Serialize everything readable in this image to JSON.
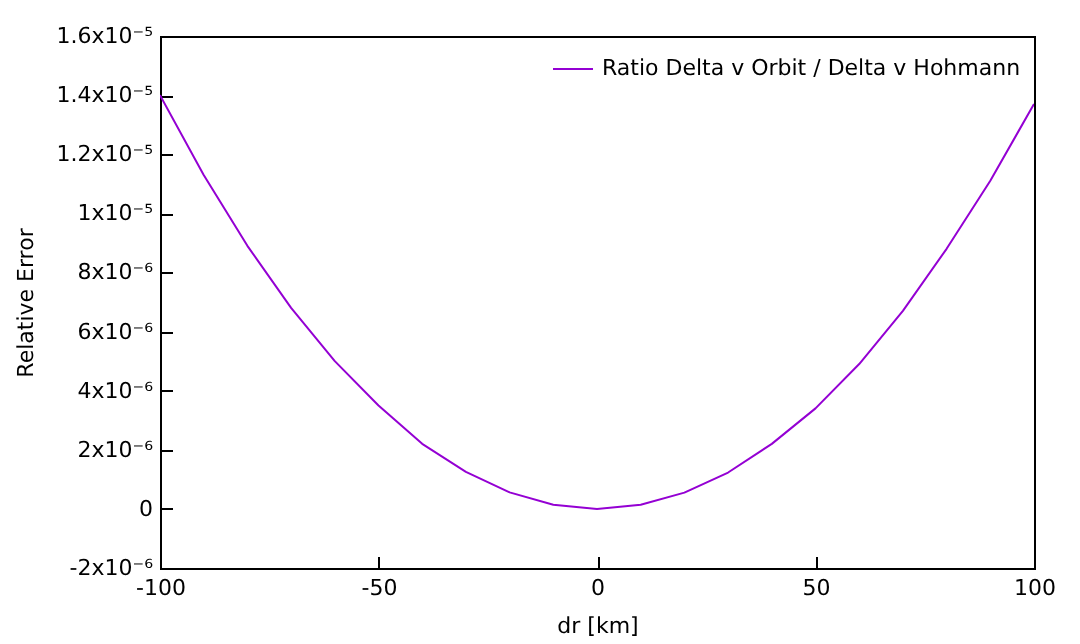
{
  "chart_data": {
    "type": "line",
    "xlabel": "dr [km]",
    "ylabel": "Relative Error",
    "x": [
      -100,
      -90,
      -80,
      -70,
      -60,
      -50,
      -40,
      -30,
      -20,
      -10,
      0,
      10,
      20,
      30,
      40,
      50,
      60,
      70,
      80,
      90,
      100
    ],
    "series": [
      {
        "name": "Ratio Delta v Orbit / Delta v Hohmann",
        "color": "#9400d3",
        "values": [
          1.4e-05,
          1.13e-05,
          8.9e-06,
          6.8e-06,
          5e-06,
          3.5e-06,
          2.2e-06,
          1.25e-06,
          5.6e-07,
          1.4e-07,
          0,
          1.4e-07,
          5.5e-07,
          1.23e-06,
          2.2e-06,
          3.4e-06,
          4.9e-06,
          6.7e-06,
          8.8e-06,
          1.11e-05,
          1.37e-05
        ]
      }
    ],
    "xlim": [
      -100,
      100
    ],
    "xticks": [
      -100,
      -50,
      0,
      50,
      100
    ],
    "ylim": [
      -2e-06,
      1.6e-05
    ],
    "yticks": [
      {
        "value": -2e-06,
        "label": "-2x10⁻⁶"
      },
      0,
      {
        "value": 2e-06,
        "label": "2x10⁻⁶"
      },
      {
        "value": 4e-06,
        "label": "4x10⁻⁶"
      },
      {
        "value": 6e-06,
        "label": "6x10⁻⁶"
      },
      {
        "value": 8e-06,
        "label": "8x10⁻⁶"
      },
      {
        "value": 1e-05,
        "label": "1x10⁻⁵"
      },
      {
        "value": 1.2e-05,
        "label": "1.2x10⁻⁵"
      },
      {
        "value": 1.4e-05,
        "label": "1.4x10⁻⁵"
      },
      {
        "value": 1.6e-05,
        "label": "1.6x10⁻⁵"
      }
    ],
    "legend": "top right",
    "grid": false,
    "marker": "none",
    "line_style": "solid"
  }
}
